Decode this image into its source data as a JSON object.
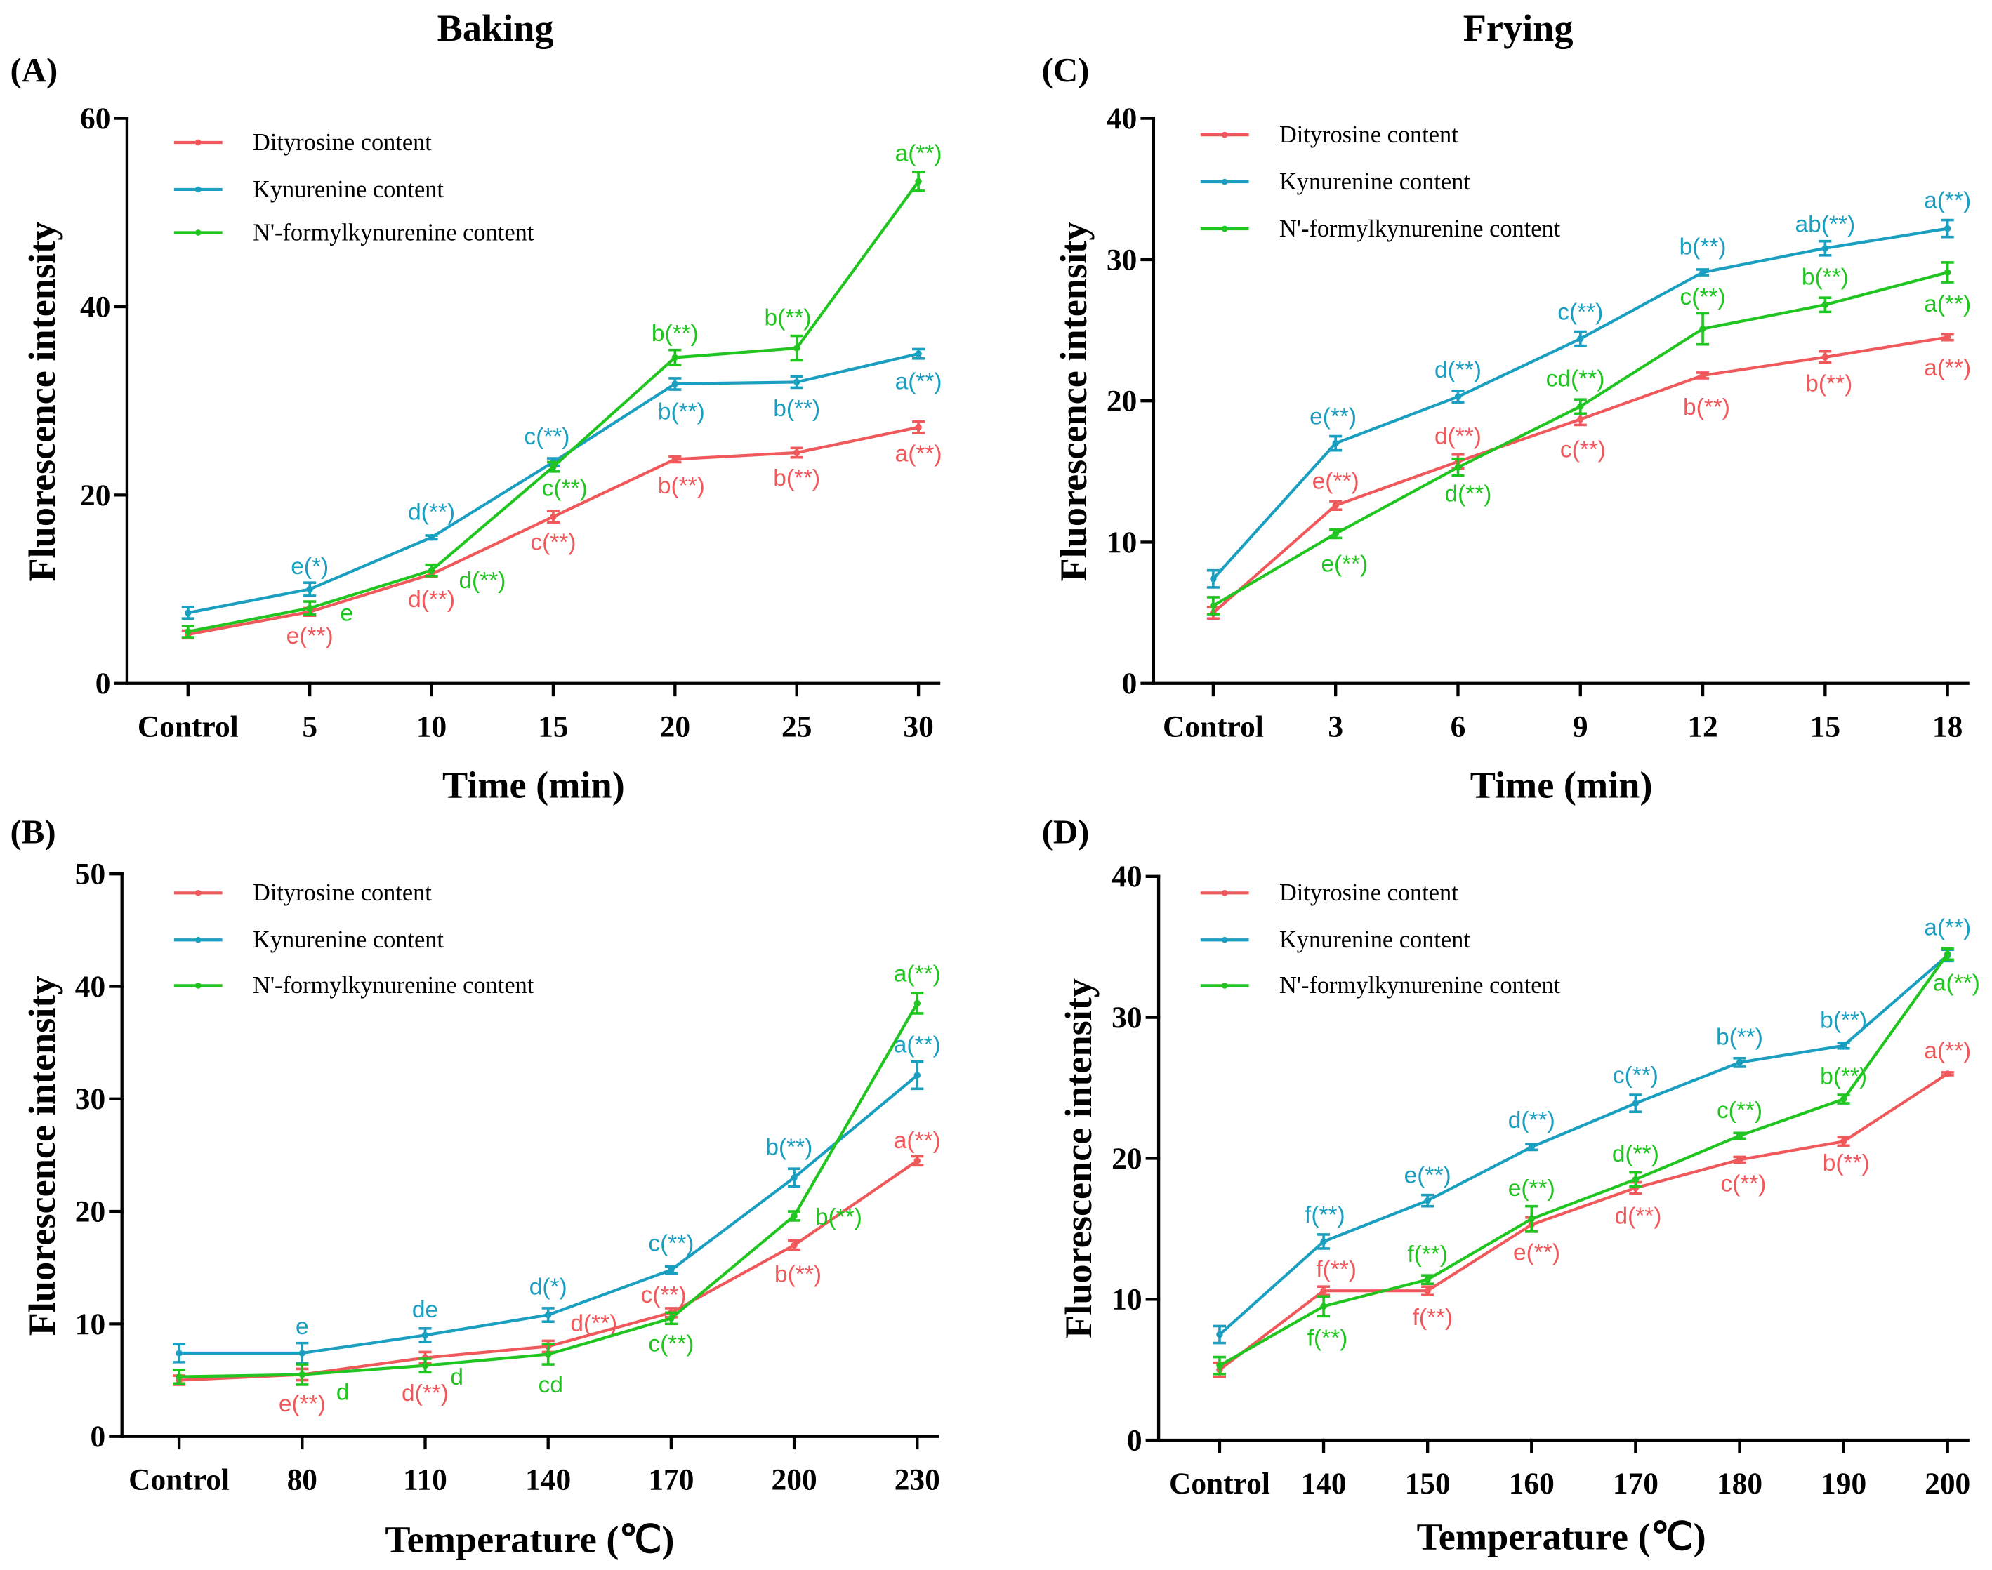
{
  "figure": {
    "column_titles": {
      "baking": "Baking",
      "frying": "Frying"
    }
  },
  "chart_data": [
    {
      "panel": "(A)",
      "type": "line",
      "xlabel": "Time (min)",
      "ylabel": "Fluorescence intensity",
      "categories": [
        "Control",
        "5",
        "10",
        "15",
        "20",
        "25",
        "30"
      ],
      "ylim": [
        0,
        60
      ],
      "yticks": [
        0,
        20,
        40,
        60
      ],
      "legend_placement": "top-left",
      "series": [
        {
          "name": "Dityrosine content",
          "color": "#f0595b",
          "values": [
            5.2,
            7.6,
            11.6,
            17.7,
            23.8,
            24.5,
            27.2
          ],
          "errors": [
            0.4,
            0.4,
            0.3,
            0.6,
            0.3,
            0.5,
            0.6
          ],
          "labels": [
            null,
            "e(**)",
            "d(**)",
            "c(**)",
            "b(**)",
            "b(**)",
            "a(**)"
          ]
        },
        {
          "name": "Kynurenine content",
          "color": "#1b9fc1",
          "values": [
            7.5,
            10.0,
            15.5,
            23.5,
            31.8,
            32.0,
            35.0
          ],
          "errors": [
            0.6,
            0.7,
            0.2,
            0.4,
            0.6,
            0.6,
            0.5
          ],
          "labels": [
            null,
            "e(*)",
            "d(**)",
            "c(**)",
            "b(**)",
            "b(**)",
            "a(**)"
          ]
        },
        {
          "name": "N'-formylkynurenine content",
          "color": "#20c520",
          "values": [
            5.5,
            8.0,
            12.0,
            23.0,
            34.6,
            35.6,
            53.3
          ],
          "errors": [
            0.6,
            0.7,
            0.6,
            0.5,
            0.8,
            1.3,
            1.0
          ],
          "labels": [
            null,
            "e",
            "d(**)",
            "c(**)",
            "b(**)",
            "b(**)",
            "a(**)"
          ]
        }
      ]
    },
    {
      "panel": "(B)",
      "type": "line",
      "xlabel": "Temperature (℃)",
      "ylabel": "Fluorescence intensity",
      "categories": [
        "Control",
        "80",
        "110",
        "140",
        "170",
        "200",
        "230"
      ],
      "ylim": [
        0,
        50
      ],
      "yticks": [
        0,
        10,
        20,
        30,
        40,
        50
      ],
      "legend_placement": "top-left",
      "series": [
        {
          "name": "Dityrosine content",
          "color": "#f0595b",
          "values": [
            5.0,
            5.5,
            7.0,
            8.0,
            11.0,
            17.0,
            24.5
          ],
          "errors": [
            0.4,
            0.5,
            0.5,
            0.5,
            0.4,
            0.4,
            0.4
          ],
          "labels": [
            null,
            "e(**)",
            "d(**)",
            "d(**)",
            "c(**)",
            "b(**)",
            "a(**)"
          ]
        },
        {
          "name": "Kynurenine content",
          "color": "#1b9fc1",
          "values": [
            7.4,
            7.4,
            9.0,
            10.8,
            14.8,
            23.0,
            32.1
          ],
          "errors": [
            0.8,
            0.9,
            0.6,
            0.6,
            0.3,
            0.8,
            1.2
          ],
          "labels": [
            null,
            "e",
            "de",
            "d(*)",
            "c(**)",
            "b(**)",
            "a(**)"
          ]
        },
        {
          "name": "N'-formylkynurenine content",
          "color": "#20c520",
          "values": [
            5.3,
            5.5,
            6.3,
            7.3,
            10.5,
            19.6,
            38.5
          ],
          "errors": [
            0.6,
            0.9,
            0.6,
            0.9,
            0.5,
            0.4,
            0.9
          ],
          "labels": [
            null,
            "d",
            "d",
            "cd",
            "c(**)",
            "b(**)",
            "a(**)"
          ]
        }
      ]
    },
    {
      "panel": "(C)",
      "type": "line",
      "xlabel": "Time (min)",
      "ylabel": "Fluorescence intensity",
      "categories": [
        "Control",
        "3",
        "6",
        "9",
        "12",
        "15",
        "18"
      ],
      "ylim": [
        0,
        40
      ],
      "yticks": [
        0,
        10,
        20,
        30,
        40
      ],
      "legend_placement": "top-left",
      "series": [
        {
          "name": "Dityrosine content",
          "color": "#f0595b",
          "values": [
            5.0,
            12.6,
            15.7,
            18.7,
            21.8,
            23.1,
            24.5
          ],
          "errors": [
            0.4,
            0.3,
            0.5,
            0.4,
            0.2,
            0.4,
            0.2
          ],
          "labels": [
            null,
            "e(**)",
            "d(**)",
            "c(**)",
            "b(**)",
            "b(**)",
            "a(**)"
          ]
        },
        {
          "name": "Kynurenine content",
          "color": "#1b9fc1",
          "values": [
            7.4,
            17.0,
            20.3,
            24.4,
            29.1,
            30.8,
            32.2
          ],
          "errors": [
            0.6,
            0.5,
            0.4,
            0.5,
            0.2,
            0.5,
            0.6
          ],
          "labels": [
            null,
            "e(**)",
            "d(**)",
            "c(**)",
            "b(**)",
            "ab(**)",
            "a(**)"
          ]
        },
        {
          "name": "N'-formylkynurenine content",
          "color": "#20c520",
          "values": [
            5.5,
            10.6,
            15.3,
            19.6,
            25.1,
            26.8,
            29.1
          ],
          "errors": [
            0.6,
            0.3,
            0.6,
            0.5,
            1.1,
            0.5,
            0.7
          ],
          "labels": [
            null,
            "e(**)",
            "d(**)",
            "cd(**)",
            "c(**)",
            "b(**)",
            "a(**)"
          ]
        }
      ]
    },
    {
      "panel": "(D)",
      "type": "line",
      "xlabel": "Temperature (℃)",
      "ylabel": "Fluorescence intensity",
      "categories": [
        "Control",
        "140",
        "150",
        "160",
        "170",
        "180",
        "190",
        "200"
      ],
      "ylim": [
        0,
        40
      ],
      "yticks": [
        0,
        10,
        20,
        30,
        40
      ],
      "legend_placement": "top-left",
      "series": [
        {
          "name": "Dityrosine content",
          "color": "#f0595b",
          "values": [
            5.0,
            10.6,
            10.6,
            15.3,
            17.9,
            19.9,
            21.2,
            26.0
          ],
          "errors": [
            0.5,
            0.3,
            0.3,
            0.5,
            0.4,
            0.2,
            0.3,
            0.1
          ],
          "labels": [
            null,
            "f(**)",
            "f(**)",
            "e(**)",
            "d(**)",
            "c(**)",
            "b(**)",
            "a(**)"
          ]
        },
        {
          "name": "Kynurenine content",
          "color": "#1b9fc1",
          "values": [
            7.5,
            14.1,
            17.0,
            20.8,
            23.9,
            26.8,
            28.0,
            34.4
          ],
          "errors": [
            0.6,
            0.5,
            0.4,
            0.2,
            0.6,
            0.3,
            0.2,
            0.4
          ],
          "labels": [
            null,
            "f(**)",
            "e(**)",
            "d(**)",
            "c(**)",
            "b(**)",
            "b(**)",
            "a(**)"
          ]
        },
        {
          "name": "N'-formylkynurenine content",
          "color": "#20c520",
          "values": [
            5.3,
            9.5,
            11.4,
            15.7,
            18.5,
            21.6,
            24.2,
            34.5
          ],
          "errors": [
            0.6,
            0.7,
            0.3,
            0.9,
            0.5,
            0.2,
            0.3,
            0.4
          ],
          "labels": [
            null,
            "f(**)",
            "f(**)",
            "e(**)",
            "d(**)",
            "c(**)",
            "b(**)",
            "a(**)"
          ]
        }
      ]
    }
  ]
}
